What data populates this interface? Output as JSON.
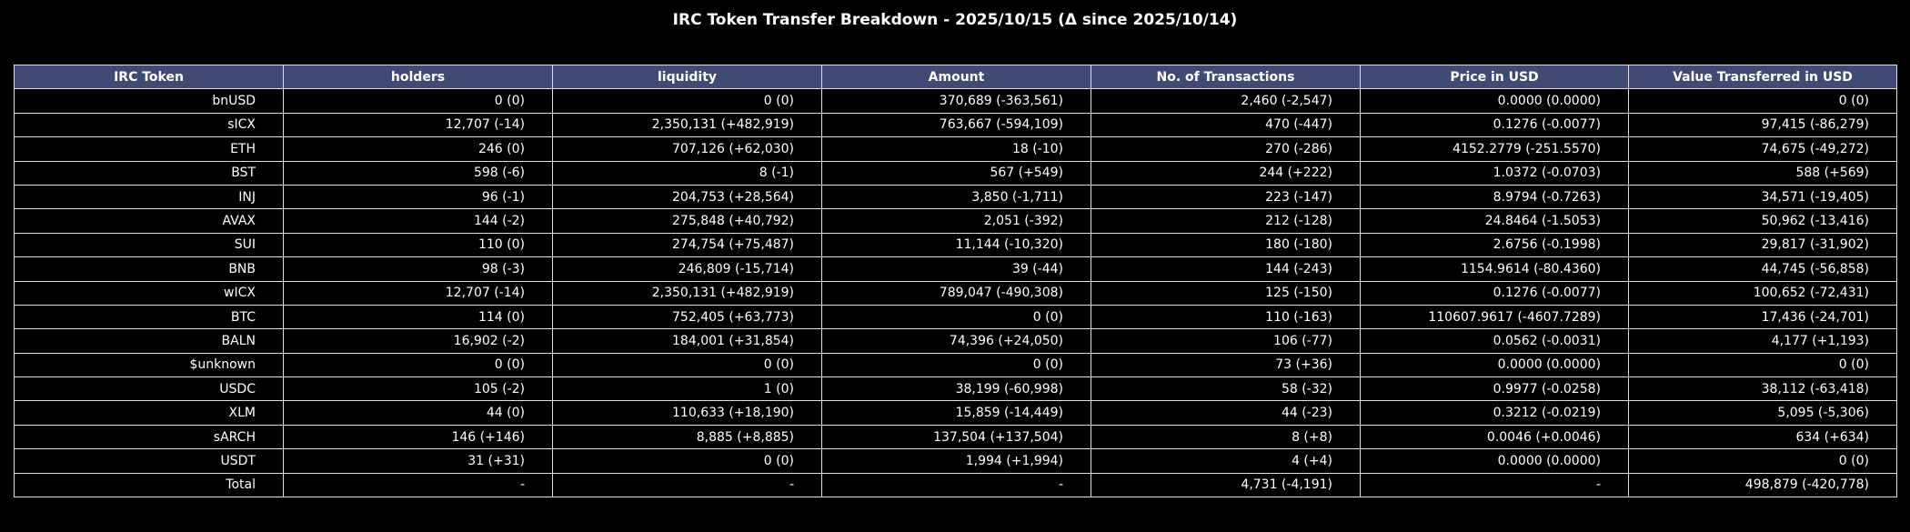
{
  "chart_data": {
    "type": "table",
    "title": "IRC Token Transfer Breakdown - 2025/10/15 (Δ since 2025/10/14)",
    "columns": [
      "IRC Token",
      "holders",
      "liquidity",
      "Amount",
      "No. of Transactions",
      "Price in USD",
      "Value Transferred in USD"
    ],
    "rows": [
      [
        "bnUSD",
        "0 (0)",
        "0 (0)",
        "370,689 (-363,561)",
        "2,460 (-2,547)",
        "0.0000 (0.0000)",
        "0 (0)"
      ],
      [
        "sICX",
        "12,707 (-14)",
        "2,350,131 (+482,919)",
        "763,667 (-594,109)",
        "470 (-447)",
        "0.1276 (-0.0077)",
        "97,415 (-86,279)"
      ],
      [
        "ETH",
        "246 (0)",
        "707,126 (+62,030)",
        "18 (-10)",
        "270 (-286)",
        "4152.2779 (-251.5570)",
        "74,675 (-49,272)"
      ],
      [
        "BST",
        "598 (-6)",
        "8 (-1)",
        "567 (+549)",
        "244 (+222)",
        "1.0372 (-0.0703)",
        "588 (+569)"
      ],
      [
        "INJ",
        "96 (-1)",
        "204,753 (+28,564)",
        "3,850 (-1,711)",
        "223 (-147)",
        "8.9794 (-0.7263)",
        "34,571 (-19,405)"
      ],
      [
        "AVAX",
        "144 (-2)",
        "275,848 (+40,792)",
        "2,051 (-392)",
        "212 (-128)",
        "24.8464 (-1.5053)",
        "50,962 (-13,416)"
      ],
      [
        "SUI",
        "110 (0)",
        "274,754 (+75,487)",
        "11,144 (-10,320)",
        "180 (-180)",
        "2.6756 (-0.1998)",
        "29,817 (-31,902)"
      ],
      [
        "BNB",
        "98 (-3)",
        "246,809 (-15,714)",
        "39 (-44)",
        "144 (-243)",
        "1154.9614 (-80.4360)",
        "44,745 (-56,858)"
      ],
      [
        "wICX",
        "12,707 (-14)",
        "2,350,131 (+482,919)",
        "789,047 (-490,308)",
        "125 (-150)",
        "0.1276 (-0.0077)",
        "100,652 (-72,431)"
      ],
      [
        "BTC",
        "114 (0)",
        "752,405 (+63,773)",
        "0 (0)",
        "110 (-163)",
        "110607.9617 (-4607.7289)",
        "17,436 (-24,701)"
      ],
      [
        "BALN",
        "16,902 (-2)",
        "184,001 (+31,854)",
        "74,396 (+24,050)",
        "106 (-77)",
        "0.0562 (-0.0031)",
        "4,177 (+1,193)"
      ],
      [
        "$unknown",
        "0 (0)",
        "0 (0)",
        "0 (0)",
        "73 (+36)",
        "0.0000 (0.0000)",
        "0 (0)"
      ],
      [
        "USDC",
        "105 (-2)",
        "1 (0)",
        "38,199 (-60,998)",
        "58 (-32)",
        "0.9977 (-0.0258)",
        "38,112 (-63,418)"
      ],
      [
        "XLM",
        "44 (0)",
        "110,633 (+18,190)",
        "15,859 (-14,449)",
        "44 (-23)",
        "0.3212 (-0.0219)",
        "5,095 (-5,306)"
      ],
      [
        "sARCH",
        "146 (+146)",
        "8,885 (+8,885)",
        "137,504 (+137,504)",
        "8 (+8)",
        "0.0046 (+0.0046)",
        "634 (+634)"
      ],
      [
        "USDT",
        "31 (+31)",
        "0 (0)",
        "1,994 (+1,994)",
        "4 (+4)",
        "0.0000 (0.0000)",
        "0 (0)"
      ],
      [
        "Total",
        "-",
        "-",
        "-",
        "4,731 (-4,191)",
        "-",
        "498,879 (-420,778)"
      ]
    ]
  },
  "colors": {
    "background": "#000000",
    "header_fill": "#414a72",
    "grid_line": "#e0e0e0",
    "text": "#ffffff"
  }
}
